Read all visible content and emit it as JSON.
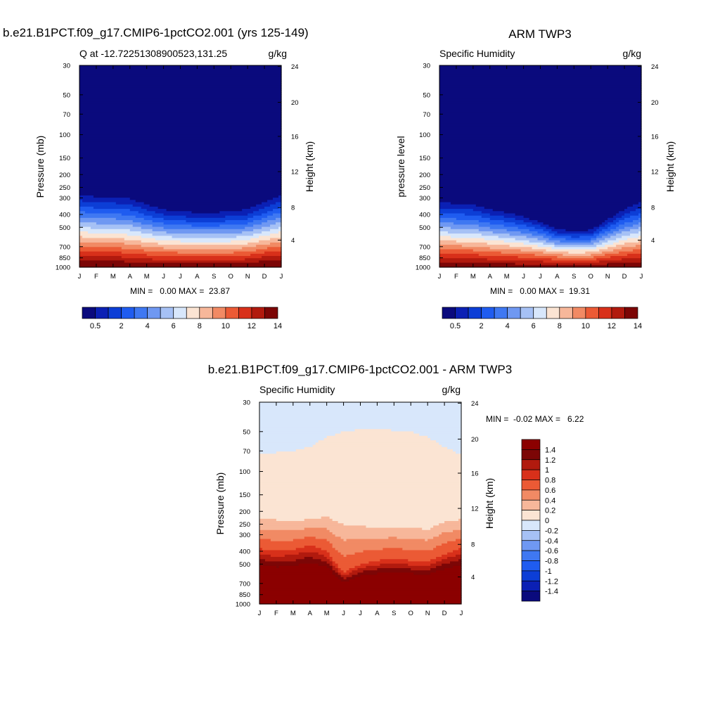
{
  "chart_data": [
    {
      "type": "contour",
      "title": "b.e21.B1PCT.f09_g17.CMIP6-1pctCO2.001 (yrs 125-149)",
      "subtitle_left": "Q at -12.72251308900523,131.25",
      "subtitle_right": "g/kg",
      "ylabel": "Pressure (mb)",
      "ylabel_right": "Height (km)",
      "x_ticks": [
        "J",
        "F",
        "M",
        "A",
        "M",
        "J",
        "J",
        "A",
        "S",
        "O",
        "N",
        "D",
        "J"
      ],
      "y_ticks": [
        "30",
        "50",
        "70",
        "100",
        "150",
        "200",
        "250",
        "300",
        "400",
        "500",
        "700",
        "850",
        "1000"
      ],
      "y_ticks_right": [
        "24",
        "20",
        "16",
        "12",
        "8",
        "4"
      ],
      "stats": "MIN =   0.00 MAX =  23.87",
      "min": 0.0,
      "max": 23.87,
      "colorbar_labels": [
        "0.5",
        "2",
        "4",
        "6",
        "8",
        "10",
        "12",
        "14"
      ],
      "boundary_p_by_month": [
        250,
        260,
        262,
        268,
        300,
        330,
        345,
        350,
        350,
        345,
        330,
        290,
        250
      ]
    },
    {
      "type": "contour",
      "title": "ARM TWP3",
      "subtitle_left": "Specific Humidity",
      "subtitle_right": "g/kg",
      "ylabel": "pressure level",
      "ylabel_right": "Height (km)",
      "x_ticks": [
        "J",
        "F",
        "M",
        "A",
        "M",
        "J",
        "J",
        "A",
        "S",
        "O",
        "N",
        "D",
        "J"
      ],
      "y_ticks": [
        "30",
        "50",
        "70",
        "100",
        "150",
        "200",
        "250",
        "300",
        "400",
        "500",
        "700",
        "850",
        "1000"
      ],
      "y_ticks_right": [
        "24",
        "20",
        "16",
        "12",
        "8",
        "4"
      ],
      "stats": "MIN =   0.00 MAX =  19.31",
      "min": 0.0,
      "max": 19.31,
      "colorbar_labels": [
        "0.5",
        "2",
        "4",
        "6",
        "8",
        "10",
        "12",
        "14"
      ],
      "boundary_p_by_month": [
        290,
        295,
        300,
        330,
        350,
        380,
        420,
        480,
        500,
        490,
        400,
        330,
        290
      ]
    },
    {
      "type": "contour",
      "title": "b.e21.B1PCT.f09_g17.CMIP6-1pctCO2.001 - ARM TWP3",
      "subtitle_left": "Specific Humidity",
      "subtitle_right": "g/kg",
      "ylabel": "Pressure (mb)",
      "ylabel_right": "Height (km)",
      "x_ticks": [
        "J",
        "F",
        "M",
        "A",
        "M",
        "J",
        "J",
        "A",
        "S",
        "O",
        "N",
        "D",
        "J"
      ],
      "y_ticks": [
        "30",
        "50",
        "70",
        "100",
        "150",
        "200",
        "250",
        "300",
        "400",
        "500",
        "700",
        "850",
        "1000"
      ],
      "y_ticks_right": [
        "24",
        "20",
        "16",
        "12",
        "8",
        "4"
      ],
      "stats": "MIN =  -0.02 MAX =   6.22",
      "min": -0.02,
      "max": 6.22,
      "colorbar_labels": [
        "1.4",
        "1.2",
        "1",
        "0.8",
        "0.6",
        "0.4",
        "0.2",
        "0",
        "-0.2",
        "-0.4",
        "-0.6",
        "-0.8",
        "-1",
        "-1.2",
        "-1.4"
      ]
    }
  ],
  "colors": {
    "seq": [
      "#0a0a7d",
      "#0b20b4",
      "#0c3ed6",
      "#1f5cf0",
      "#3f78f2",
      "#6f98f2",
      "#a6c1f5",
      "#d8e7fb",
      "#fbe4d3",
      "#f7b79a",
      "#f18a64",
      "#eb5a35",
      "#d8301a",
      "#b11a0e",
      "#7c0606"
    ],
    "div": [
      "#0a0a7d",
      "#0b20b4",
      "#0c3ed6",
      "#1f5cf0",
      "#3f78f2",
      "#6f98f2",
      "#a6c1f5",
      "#d8e7fb",
      "#fbe4d3",
      "#f7b79a",
      "#f18a64",
      "#eb5a35",
      "#d8301a",
      "#b11a0e",
      "#7c0606",
      "#8b0000"
    ]
  }
}
